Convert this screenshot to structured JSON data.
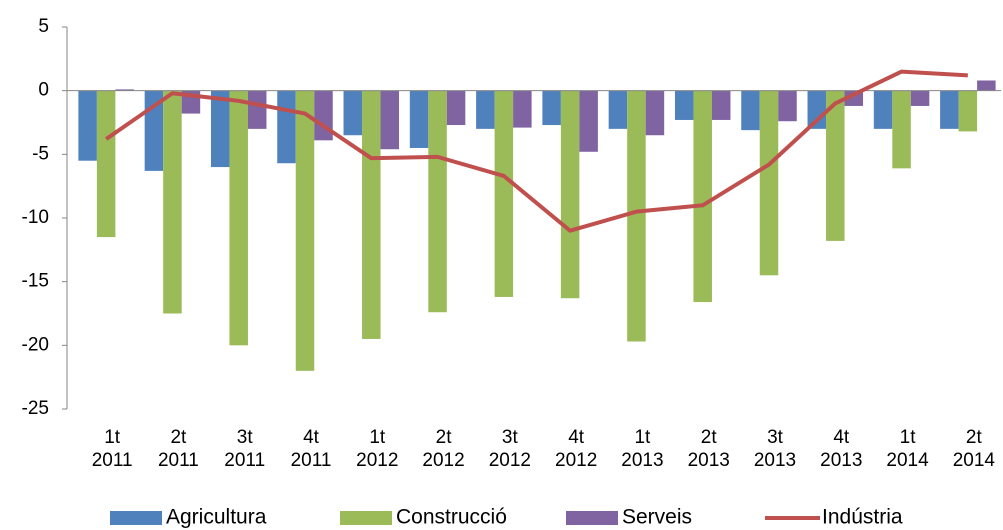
{
  "chart_data": {
    "type": "bar",
    "categories": [
      [
        "1t",
        "2011"
      ],
      [
        "2t",
        "2011"
      ],
      [
        "3t",
        "2011"
      ],
      [
        "4t",
        "2011"
      ],
      [
        "1t",
        "2012"
      ],
      [
        "2t",
        "2012"
      ],
      [
        "3t",
        "2012"
      ],
      [
        "4t",
        "2012"
      ],
      [
        "1t",
        "2013"
      ],
      [
        "2t",
        "2013"
      ],
      [
        "3t",
        "2013"
      ],
      [
        "4t",
        "2013"
      ],
      [
        "1t",
        "2014"
      ],
      [
        "2t",
        "2014"
      ]
    ],
    "series": [
      {
        "name": "Agricultura",
        "color": "#4f81bd",
        "type": "bar",
        "values": [
          -5.5,
          -6.3,
          -6.0,
          -5.7,
          -3.5,
          -4.5,
          -3.0,
          -2.7,
          -3.0,
          -2.3,
          -3.1,
          -3.0,
          -3.0,
          -3.0
        ]
      },
      {
        "name": "Construcció",
        "color": "#9bbb59",
        "type": "bar",
        "values": [
          -11.5,
          -17.5,
          -20.0,
          -22.0,
          -19.5,
          -17.4,
          -16.2,
          -16.3,
          -19.7,
          -16.6,
          -14.5,
          -11.8,
          -6.1,
          -3.2
        ]
      },
      {
        "name": "Serveis",
        "color": "#8064a2",
        "type": "bar",
        "values": [
          0.1,
          -1.8,
          -3.0,
          -3.9,
          -4.6,
          -2.7,
          -2.9,
          -4.8,
          -3.5,
          -2.3,
          -2.4,
          -1.2,
          -1.2,
          0.8
        ]
      },
      {
        "name": "Indústria",
        "color": "#c0504d",
        "type": "line",
        "values": [
          -3.8,
          -0.2,
          -0.8,
          -1.8,
          -5.3,
          -5.2,
          -6.7,
          -11.0,
          -9.5,
          -9.0,
          -5.8,
          -1.0,
          1.5,
          1.2
        ]
      }
    ],
    "ylim": [
      -25,
      5
    ],
    "yticks": [
      -25,
      -20,
      -15,
      -10,
      -5,
      0,
      5
    ],
    "grid": false,
    "legend": "bottom"
  }
}
